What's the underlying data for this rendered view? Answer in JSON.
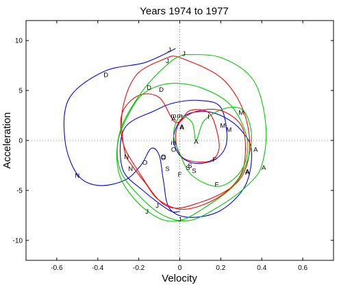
{
  "chart_data": {
    "type": "line",
    "title": "Years 1974 to 1977",
    "xlabel": "Velocity",
    "ylabel": "Acceleration",
    "xlim": [
      -0.75,
      0.75
    ],
    "ylim": [
      -12,
      12
    ],
    "xticks": [
      -0.6,
      -0.4,
      -0.2,
      0,
      0.2,
      0.4,
      0.6
    ],
    "xtick_labels": [
      "-0.6",
      "-0.4",
      "-0.2",
      "0",
      "0.2",
      "0.4",
      "0.6"
    ],
    "yticks": [
      -10,
      -5,
      0,
      5,
      10
    ],
    "ytick_labels": [
      "-10",
      "-5",
      "0",
      "5",
      "10"
    ],
    "reference_lines": {
      "x": 0,
      "y": 0,
      "style": "dotted"
    },
    "grid": false,
    "legend": "none",
    "series": [
      {
        "color": "#0000ff",
        "points": [
          [
            -0.02,
            9.2
          ],
          [
            -0.17,
            7.8
          ],
          [
            -0.37,
            6.9
          ],
          [
            -0.54,
            4.2
          ],
          [
            -0.56,
            0.0
          ],
          [
            -0.5,
            -3.4
          ],
          [
            -0.4,
            -4.5
          ],
          [
            -0.27,
            -4.0
          ],
          [
            -0.19,
            -2.5
          ],
          [
            -0.14,
            -0.8
          ],
          [
            -0.1,
            -1.5
          ],
          [
            -0.08,
            -4.0
          ],
          [
            -0.05,
            -6.8
          ],
          [
            0.05,
            -7.7
          ],
          [
            0.2,
            -7.0
          ],
          [
            0.32,
            -4.5
          ],
          [
            0.35,
            -1.0
          ],
          [
            0.3,
            1.0
          ],
          [
            0.22,
            2.3
          ],
          [
            0.12,
            2.9
          ],
          [
            0.02,
            2.4
          ],
          [
            -0.03,
            0.4
          ],
          [
            0.0,
            -1.5
          ],
          [
            0.08,
            -2.3
          ],
          [
            0.18,
            -1.8
          ],
          [
            0.23,
            0.0
          ],
          [
            0.2,
            3.3
          ],
          [
            0.1,
            4.0
          ],
          [
            -0.02,
            3.8
          ],
          [
            -0.12,
            3.0
          ],
          [
            -0.27,
            1.2
          ],
          [
            -0.28,
            -2.8
          ],
          [
            -0.18,
            -5.0
          ],
          [
            -0.05,
            -7.0
          ],
          [
            0.0,
            -7.1
          ]
        ],
        "labels": [
          {
            "text": "J",
            "x": -0.05,
            "y": 9.1
          },
          {
            "text": "D",
            "x": -0.36,
            "y": 6.6
          },
          {
            "text": "N",
            "x": -0.5,
            "y": -3.5
          },
          {
            "text": "O",
            "x": -0.17,
            "y": -2.2
          },
          {
            "text": "S",
            "x": -0.06,
            "y": -2.8
          },
          {
            "text": "F",
            "x": 0.17,
            "y": -1.9
          },
          {
            "text": "M",
            "x": 0.24,
            "y": 1.1
          },
          {
            "text": "m",
            "x": -0.03,
            "y": 2.5
          },
          {
            "text": "J",
            "x": -0.16,
            "y": -7.1
          }
        ]
      },
      {
        "color": "#ff0000",
        "points": [
          [
            -0.06,
            8.3
          ],
          [
            -0.21,
            6.6
          ],
          [
            -0.28,
            3.0
          ],
          [
            -0.27,
            -1.0
          ],
          [
            -0.23,
            -2.6
          ],
          [
            -0.17,
            -4.2
          ],
          [
            -0.1,
            -6.0
          ],
          [
            0.02,
            -6.9
          ],
          [
            0.18,
            -5.8
          ],
          [
            0.29,
            -3.7
          ],
          [
            0.32,
            -1.2
          ],
          [
            0.3,
            1.5
          ],
          [
            0.2,
            3.0
          ],
          [
            0.08,
            2.9
          ],
          [
            0.0,
            1.8
          ],
          [
            -0.02,
            0.0
          ],
          [
            0.02,
            -1.8
          ],
          [
            0.14,
            -2.1
          ],
          [
            0.19,
            -1.0
          ],
          [
            0.18,
            1.0
          ],
          [
            0.14,
            2.8
          ],
          [
            0.05,
            3.0
          ],
          [
            -0.02,
            1.8
          ],
          [
            -0.1,
            4.3
          ],
          [
            -0.2,
            4.5
          ],
          [
            -0.28,
            2.8
          ],
          [
            -0.28,
            0.0
          ],
          [
            -0.22,
            -2.5
          ],
          [
            -0.07,
            -6.5
          ],
          [
            0.1,
            -6.2
          ],
          [
            0.28,
            -4.2
          ],
          [
            0.34,
            -1.0
          ],
          [
            0.31,
            3.0
          ],
          [
            0.2,
            6.3
          ],
          [
            0.0,
            8.3
          ],
          [
            -0.06,
            8.3
          ]
        ],
        "labels": [
          {
            "text": "J",
            "x": -0.06,
            "y": 8.0
          },
          {
            "text": "D",
            "x": -0.09,
            "y": 5.1
          },
          {
            "text": "N",
            "x": -0.24,
            "y": -2.8
          },
          {
            "text": "O",
            "x": -0.08,
            "y": -1.7
          },
          {
            "text": "S",
            "x": 0.04,
            "y": -2.7
          },
          {
            "text": "F",
            "x": 0.18,
            "y": -4.4
          },
          {
            "text": "A",
            "x": 0.33,
            "y": -3.2
          },
          {
            "text": "I",
            "x": 0.14,
            "y": 2.4
          },
          {
            "text": "A",
            "x": 0.01,
            "y": 1.3
          },
          {
            "text": "J",
            "x": -0.11,
            "y": -6.5
          }
        ]
      },
      {
        "color": "#00cc00",
        "points": [
          [
            0.02,
            8.6
          ],
          [
            0.2,
            8.3
          ],
          [
            0.36,
            6.0
          ],
          [
            0.42,
            1.5
          ],
          [
            0.4,
            -2.5
          ],
          [
            0.33,
            -4.5
          ],
          [
            0.2,
            -6.5
          ],
          [
            0.05,
            -8.0
          ],
          [
            -0.08,
            -7.5
          ],
          [
            -0.2,
            -5.5
          ],
          [
            -0.29,
            -3.0
          ],
          [
            -0.3,
            0.0
          ],
          [
            -0.24,
            3.0
          ],
          [
            -0.17,
            4.8
          ],
          [
            -0.05,
            5.7
          ],
          [
            0.1,
            5.3
          ],
          [
            0.25,
            3.5
          ],
          [
            0.33,
            0.0
          ],
          [
            0.3,
            -3.0
          ],
          [
            0.19,
            -4.6
          ],
          [
            0.06,
            -3.5
          ],
          [
            0.0,
            -1.3
          ],
          [
            -0.03,
            0.6
          ],
          [
            0.0,
            2.4
          ],
          [
            0.06,
            1.8
          ],
          [
            0.08,
            0.0
          ],
          [
            0.12,
            2.0
          ],
          [
            0.22,
            3.2
          ],
          [
            0.31,
            3.0
          ],
          [
            0.35,
            0.6
          ],
          [
            0.33,
            -2.0
          ],
          [
            0.26,
            -4.6
          ],
          [
            0.1,
            -7.0
          ],
          [
            0.0,
            -8.0
          ],
          [
            -0.1,
            -7.8
          ],
          [
            -0.22,
            -5.9
          ],
          [
            -0.3,
            -3.0
          ],
          [
            -0.29,
            1.0
          ],
          [
            -0.18,
            5.0
          ],
          [
            -0.05,
            7.8
          ],
          [
            0.02,
            8.6
          ]
        ],
        "labels": [
          {
            "text": "J",
            "x": 0.02,
            "y": 8.7
          },
          {
            "text": "D",
            "x": -0.15,
            "y": 5.3
          },
          {
            "text": "N",
            "x": -0.26,
            "y": -1.6
          },
          {
            "text": "O",
            "x": -0.08,
            "y": -1.6
          },
          {
            "text": "S",
            "x": 0.07,
            "y": -3.0
          },
          {
            "text": "F",
            "x": 0.0,
            "y": -3.4
          },
          {
            "text": "A",
            "x": 0.08,
            "y": -0.1
          },
          {
            "text": "m",
            "x": 0.0,
            "y": 2.5
          },
          {
            "text": "M",
            "x": 0.3,
            "y": 2.8
          },
          {
            "text": "A",
            "x": 0.37,
            "y": -0.9
          },
          {
            "text": "A",
            "x": 0.41,
            "y": -2.7
          },
          {
            "text": "J",
            "x": 0.0,
            "y": -7.9
          }
        ]
      }
    ],
    "extra_labels": [
      {
        "text": "A",
        "x": -0.03,
        "y": 2.2
      },
      {
        "text": "m",
        "x": -0.03,
        "y": -0.2
      },
      {
        "text": "O",
        "x": -0.03,
        "y": -0.9
      },
      {
        "text": "S",
        "x": 0.05,
        "y": -2.5
      },
      {
        "text": "A",
        "x": 0.33,
        "y": -3.1
      },
      {
        "text": "M",
        "x": 0.21,
        "y": 1.5
      },
      {
        "text": "A",
        "x": 0.01,
        "y": 1.4
      }
    ]
  }
}
